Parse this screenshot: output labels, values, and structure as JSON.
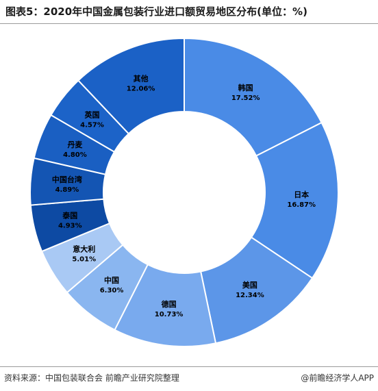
{
  "header": {
    "title": "图表5：2020年中国金属包装行业进口额贸易地区分布(单位：%)"
  },
  "footer": {
    "source": "资料来源：中国包装联合会 前瞻产业研究院整理",
    "brand": "@前瞻经济学人APP"
  },
  "chart_data": {
    "type": "pie",
    "variant": "donut",
    "title": "图表5：2020年中国金属包装行业进口额贸易地区分布(单位：%)",
    "unit": "%",
    "legend": "none",
    "categories": [
      "韩国",
      "日本",
      "美国",
      "德国",
      "中国",
      "意大利",
      "泰国",
      "中国台湾",
      "丹麦",
      "英国",
      "其他"
    ],
    "values": [
      17.52,
      16.87,
      12.34,
      10.73,
      6.3,
      5.01,
      4.93,
      4.89,
      4.8,
      4.57,
      12.06
    ],
    "labels": [
      "17.52%",
      "16.87%",
      "12.34%",
      "10.73%",
      "6.30%",
      "5.01%",
      "4.93%",
      "4.89%",
      "4.80%",
      "4.57%",
      "12.06%"
    ],
    "colors": [
      "#4a8be6",
      "#4a8be6",
      "#5c96e8",
      "#79aaee",
      "#8ab6f0",
      "#a9c9f4",
      "#0d4aa3",
      "#1455b3",
      "#1a5fc2",
      "#1c63c8",
      "#1b61c6"
    ]
  }
}
